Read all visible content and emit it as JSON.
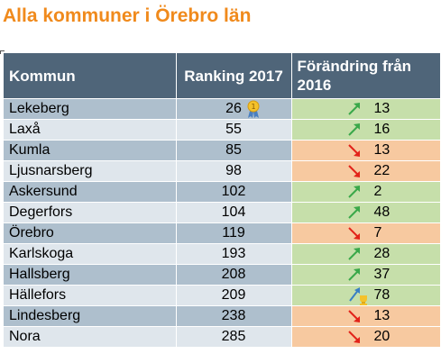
{
  "title": "Alla kommuner i Örebro län",
  "header": {
    "kommun": "Kommun",
    "ranking": "Ranking 2017",
    "change": "Förändring från 2016"
  },
  "colors": {
    "title": "#f08a1c",
    "header_bg": "#4f6579",
    "row_dark": "#aebfcd",
    "row_light": "#dfe6ec",
    "up_bg": "#c6dfaa",
    "down_bg": "#f7c9a0",
    "up_arrow": "#3aa84a",
    "down_arrow": "#e2231a"
  },
  "rows": [
    {
      "name": "Lekeberg",
      "rank": "26",
      "direction": "up",
      "change": "13",
      "icon": "medal-icon"
    },
    {
      "name": "Laxå",
      "rank": "55",
      "direction": "up",
      "change": "16"
    },
    {
      "name": "Kumla",
      "rank": "85",
      "direction": "down",
      "change": "13"
    },
    {
      "name": "Ljusnarsberg",
      "rank": "98",
      "direction": "down",
      "change": "22"
    },
    {
      "name": "Askersund",
      "rank": "102",
      "direction": "up",
      "change": "2"
    },
    {
      "name": "Degerfors",
      "rank": "104",
      "direction": "up",
      "change": "48"
    },
    {
      "name": "Örebro",
      "rank": "119",
      "direction": "down",
      "change": "7"
    },
    {
      "name": "Karlskoga",
      "rank": "193",
      "direction": "up",
      "change": "28"
    },
    {
      "name": "Hallsberg",
      "rank": "208",
      "direction": "up",
      "change": "37"
    },
    {
      "name": "Hällefors",
      "rank": "209",
      "direction": "up",
      "change": "78",
      "icon": "trophy-arrow-icon"
    },
    {
      "name": "Lindesberg",
      "rank": "238",
      "direction": "down",
      "change": "13"
    },
    {
      "name": "Nora",
      "rank": "285",
      "direction": "down",
      "change": "20"
    }
  ]
}
